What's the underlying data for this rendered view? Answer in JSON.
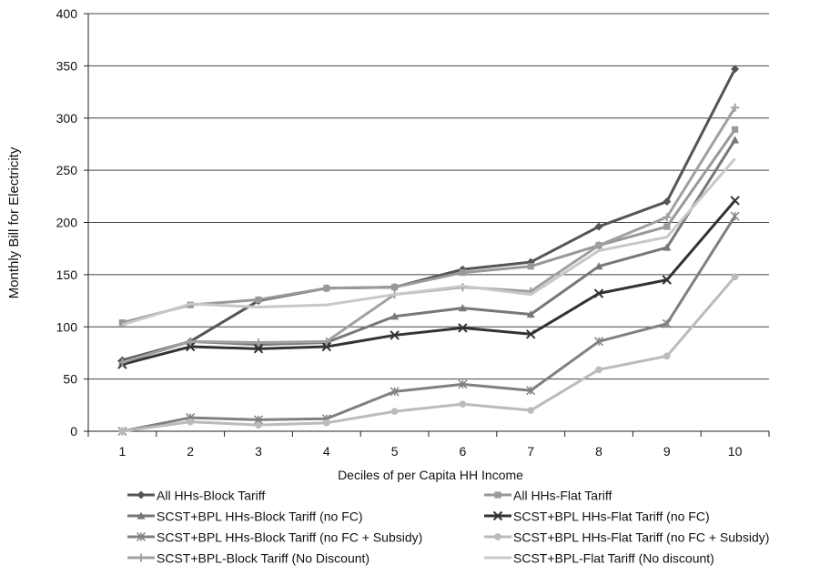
{
  "chart_data": {
    "type": "line",
    "title": "",
    "xlabel": "Deciles of per Capita HH Income",
    "ylabel": "Monthly Bill for Electricity",
    "x": [
      1,
      2,
      3,
      4,
      5,
      6,
      7,
      8,
      9,
      10
    ],
    "x_tick_labels": [
      "1",
      "2",
      "3",
      "4",
      "5",
      "6",
      "7",
      "8",
      "9",
      "10"
    ],
    "ylim": [
      0,
      400
    ],
    "y_ticks": [
      0,
      50,
      100,
      150,
      200,
      250,
      300,
      350,
      400
    ],
    "grid": "horizontal",
    "legend_position": "bottom",
    "series": [
      {
        "name": "All HHs-Block Tariff",
        "marker": "diamond",
        "color": "#555555",
        "values": [
          68,
          86,
          125,
          137,
          138,
          155,
          162,
          196,
          220,
          347
        ]
      },
      {
        "name": "All HHs-Flat Tariff",
        "marker": "square",
        "color": "#999999",
        "values": [
          104,
          121,
          126,
          137,
          138,
          152,
          158,
          178,
          196,
          289
        ]
      },
      {
        "name": "SCST+BPL HHs-Block Tariff (no FC)",
        "marker": "triangle",
        "color": "#777777",
        "values": [
          66,
          86,
          83,
          85,
          110,
          118,
          112,
          158,
          176,
          279
        ]
      },
      {
        "name": "SCST+BPL HHs-Flat Tariff (no FC)",
        "marker": "x",
        "color": "#333333",
        "values": [
          64,
          81,
          79,
          81,
          92,
          99,
          93,
          132,
          145,
          221
        ]
      },
      {
        "name": "SCST+BPL HHs-Block Tariff (no FC + Subsidy)",
        "marker": "star",
        "color": "#808080",
        "values": [
          0,
          13,
          11,
          12,
          38,
          45,
          39,
          86,
          103,
          206
        ]
      },
      {
        "name": "SCST+BPL HHs-Flat Tariff (no FC + Subsidy)",
        "marker": "circle",
        "color": "#bbbbbb",
        "values": [
          0,
          9,
          6,
          8,
          19,
          26,
          20,
          59,
          72,
          148
        ]
      },
      {
        "name": "SCST+BPL-Block Tariff (No Discount)",
        "marker": "plus",
        "color": "#a0a0a0",
        "values": [
          66,
          86,
          85,
          86,
          131,
          138,
          134,
          178,
          205,
          310
        ]
      },
      {
        "name": "SCST+BPL-Flat Tariff (No discount)",
        "marker": "none",
        "color": "#c8c8c8",
        "values": [
          102,
          122,
          119,
          121,
          131,
          139,
          131,
          173,
          186,
          261
        ]
      }
    ]
  }
}
